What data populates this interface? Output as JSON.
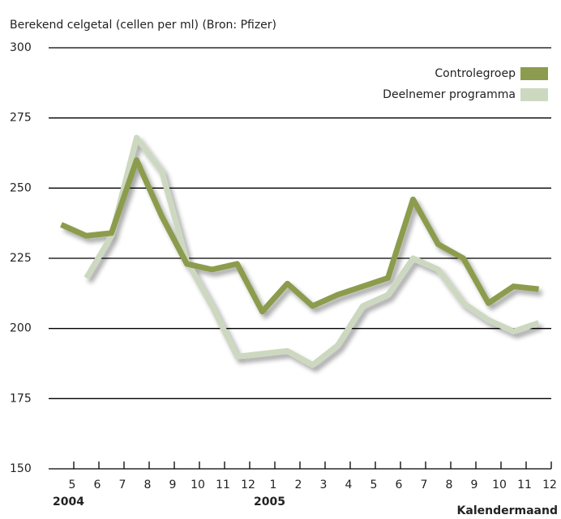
{
  "chart_data": {
    "type": "line",
    "title": "Berekend celgetal (cellen per ml) (Bron: Pfizer)",
    "x_label": "Kalendermaand",
    "x": [
      0.5,
      1.5,
      2.5,
      3.5,
      4.5,
      5.5,
      6.5,
      7.5,
      8.5,
      9.5,
      10.5,
      11.5,
      12.5,
      13.5,
      14.5,
      15.5,
      16.5,
      17.5,
      18.5,
      19.5
    ],
    "series": [
      {
        "name": "Controlegroep",
        "color": "#8c9c4e",
        "values": [
          237,
          233,
          234,
          260,
          240,
          223,
          221,
          223,
          206,
          216,
          208,
          212,
          215,
          218,
          246,
          230,
          225,
          209,
          215,
          214
        ]
      },
      {
        "name": "Deelnemer programma",
        "color": "#cdd8c0",
        "values": [
          null,
          218,
          233,
          268,
          256,
          224,
          208,
          190,
          191,
          192,
          187,
          194,
          208,
          212,
          225,
          221,
          209,
          203,
          199,
          202
        ]
      }
    ],
    "xlim": [
      0,
      20
    ],
    "xticks": [
      {
        "value": 1,
        "label": "5"
      },
      {
        "value": 2,
        "label": "6"
      },
      {
        "value": 3,
        "label": "7"
      },
      {
        "value": 4,
        "label": "8"
      },
      {
        "value": 5,
        "label": "9"
      },
      {
        "value": 6,
        "label": "10"
      },
      {
        "value": 7,
        "label": "11"
      },
      {
        "value": 8,
        "label": "12"
      },
      {
        "value": 9,
        "label": "1"
      },
      {
        "value": 10,
        "label": "2"
      },
      {
        "value": 11,
        "label": "3"
      },
      {
        "value": 12,
        "label": "4"
      },
      {
        "value": 13,
        "label": "5"
      },
      {
        "value": 14,
        "label": "6"
      },
      {
        "value": 15,
        "label": "7"
      },
      {
        "value": 16,
        "label": "8"
      },
      {
        "value": 17,
        "label": "9"
      },
      {
        "value": 18,
        "label": "10"
      },
      {
        "value": 19,
        "label": "11"
      },
      {
        "value": 20,
        "label": "12"
      }
    ],
    "year_ticks": [
      {
        "value": 1,
        "label": "2004"
      },
      {
        "value": 9,
        "label": "2005"
      }
    ],
    "ylim": [
      150,
      300
    ],
    "yticks": [
      150,
      175,
      200,
      225,
      250,
      275,
      300
    ],
    "grid": true,
    "legend": "top-right"
  }
}
